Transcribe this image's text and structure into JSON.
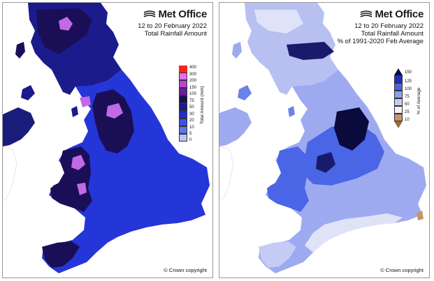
{
  "panels": [
    {
      "brand": "Met Office",
      "date_range": "12 to 20 February 2022",
      "title": "Total Rainfall Amount",
      "subtitle": "",
      "copyright": "© Crown copyright",
      "legend_title": "Total Amount (mm)",
      "legend_ticks": [
        "400",
        "300",
        "200",
        "150",
        "100",
        "75",
        "50",
        "30",
        "20",
        "10",
        "5",
        "0"
      ],
      "legend_colors": [
        "#ff2020",
        "#e070f0",
        "#c040d8",
        "#6a1e9a",
        "#1a0f56",
        "#1b1b8c",
        "#1f2ec8",
        "#3a52e8",
        "#6076ec",
        "#8c9ef0",
        "#bcc4f4",
        "#eaecf8"
      ]
    },
    {
      "brand": "Met Office",
      "date_range": "12 to 20 February 2022",
      "title": "Total Rainfall Amount",
      "subtitle": "% of 1991-2020 Feb Average",
      "copyright": "© Crown copyright",
      "legend_title": "% of Average",
      "legend_ticks": [
        "150",
        "125",
        "100",
        "75",
        "50",
        "25",
        "10"
      ],
      "legend_colors": [
        "#0a0a3c",
        "#1f2ec8",
        "#4a66e6",
        "#8c9ef0",
        "#c4ccf6",
        "#f2f2f8",
        "#c89466",
        "#9a6a3c"
      ]
    }
  ],
  "colors": {
    "sea": "#ffffff",
    "land_other": "#ffffff",
    "left_base": "#1c26c4",
    "left_dark": "#1a0f56",
    "left_mid": "#2436d8",
    "left_purple": "#c26ae6",
    "right_base": "#9eaaf0",
    "right_mid": "#4a66e6",
    "right_dark": "#0a0a3c",
    "right_pale": "#dfe3f8"
  }
}
